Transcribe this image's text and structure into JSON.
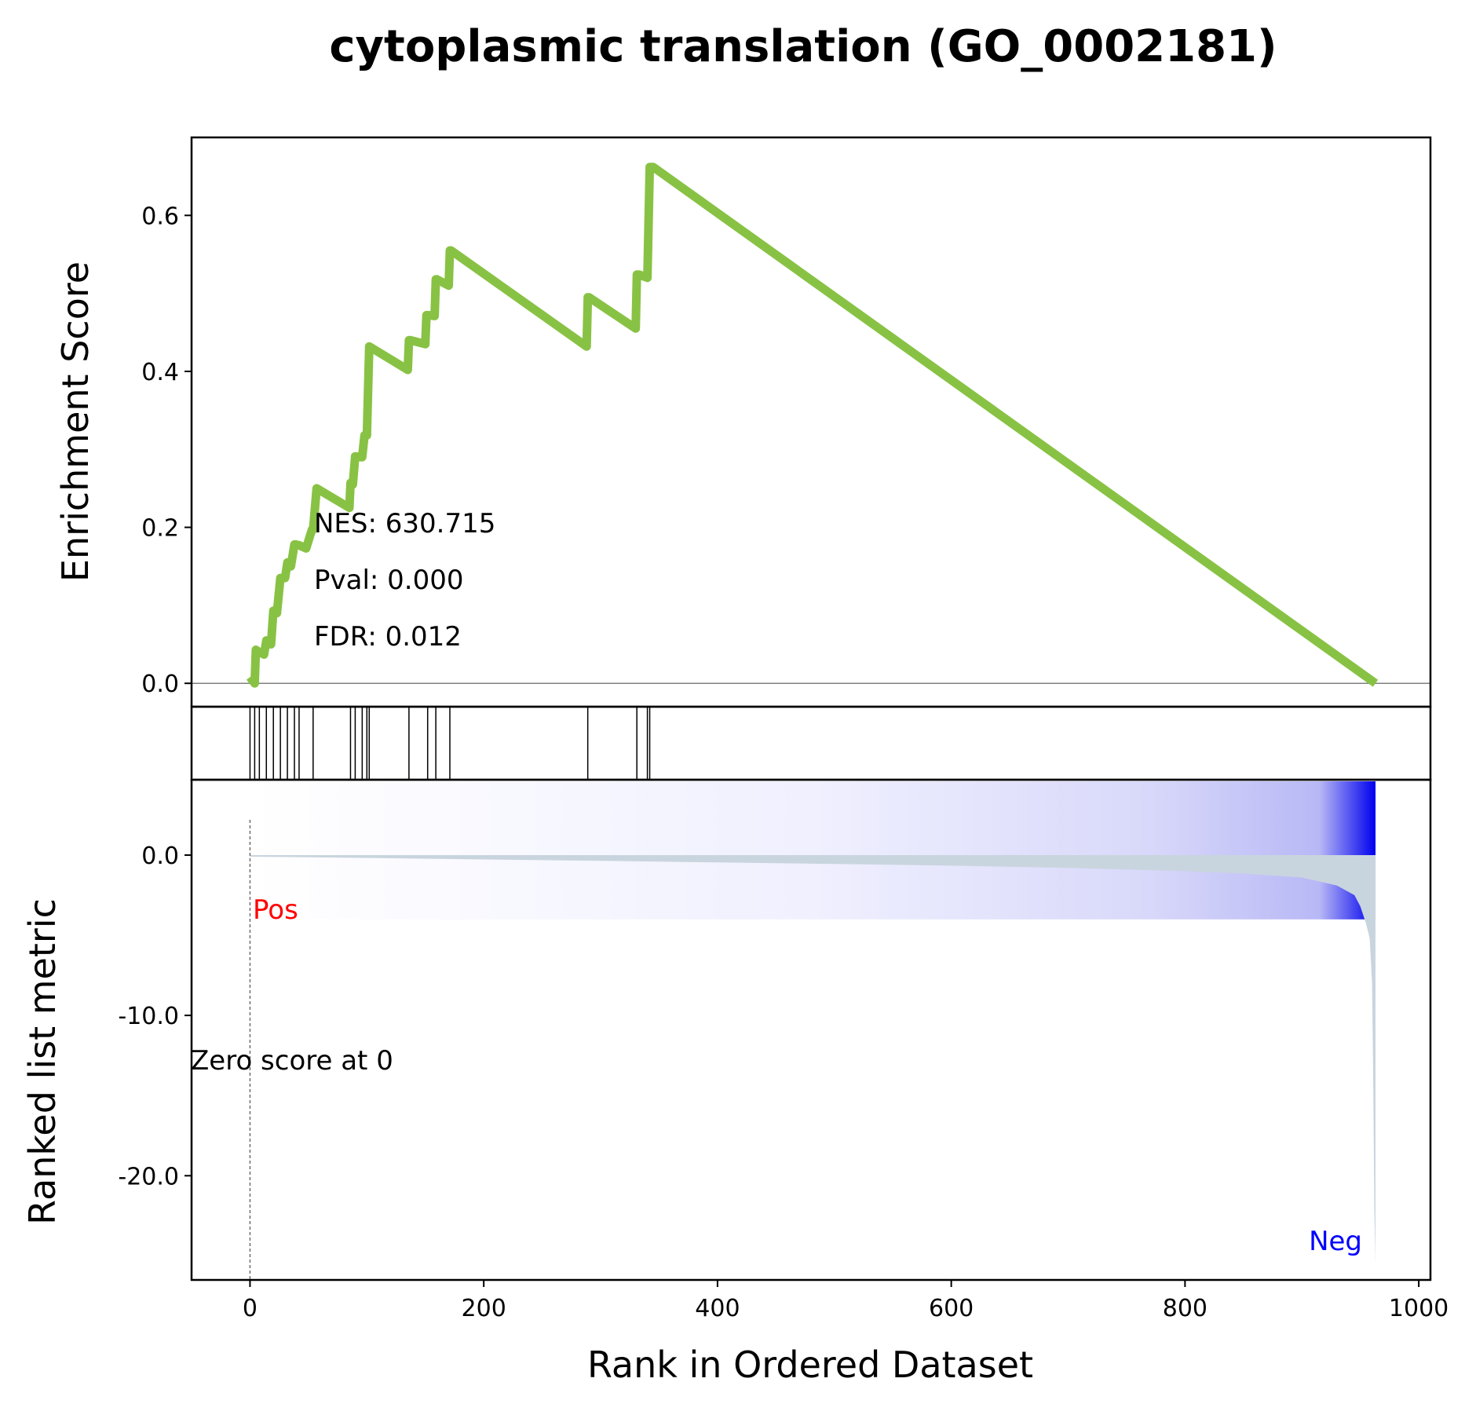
{
  "chart_data": {
    "type": "line",
    "title": "cytoplasmic translation (GO_0002181)",
    "xlabel": "Rank in Ordered Dataset",
    "xlim": [
      -50,
      1010
    ],
    "xticks": [
      0,
      200,
      400,
      600,
      800,
      1000
    ],
    "n_genes": 963,
    "enrichment_panel": {
      "ylabel": "Enrichment Score",
      "ylim": [
        -0.03,
        0.7
      ],
      "yticks": [
        0.0,
        0.2,
        0.4,
        0.6
      ],
      "ytick_labels": [
        "0.0",
        "0.2",
        "0.4",
        "0.6"
      ],
      "line_color": "#88c244",
      "zero_line": true,
      "running_es": {
        "x": [
          0,
          4,
          5,
          8,
          12,
          14,
          18,
          20,
          23,
          26,
          30,
          32,
          35,
          38,
          39,
          42,
          48,
          53,
          54,
          57,
          85,
          86,
          88,
          90,
          95,
          96,
          98,
          100,
          102,
          135,
          136,
          137,
          150,
          151,
          152,
          158,
          159,
          160,
          170,
          171,
          172,
          288,
          289,
          290,
          330,
          331,
          333,
          340,
          342,
          345,
          963
        ],
        "y": [
          0.008,
          0.0,
          0.043,
          0.04,
          0.037,
          0.055,
          0.05,
          0.093,
          0.09,
          0.135,
          0.135,
          0.155,
          0.15,
          0.178,
          0.178,
          0.177,
          0.173,
          0.197,
          0.197,
          0.25,
          0.225,
          0.257,
          0.255,
          0.291,
          0.29,
          0.29,
          0.318,
          0.318,
          0.432,
          0.402,
          0.44,
          0.44,
          0.435,
          0.472,
          0.472,
          0.471,
          0.518,
          0.518,
          0.51,
          0.555,
          0.555,
          0.432,
          0.495,
          0.495,
          0.455,
          0.524,
          0.524,
          0.52,
          0.662,
          0.662,
          0.0
        ]
      },
      "stats": {
        "nes": "NES: 630.715",
        "pval": "Pval: 0.000",
        "fdr": "FDR: 0.012"
      }
    },
    "hits_panel": {
      "hit_ranks": [
        0,
        4,
        8,
        14,
        20,
        26,
        32,
        38,
        42,
        54,
        86,
        90,
        96,
        100,
        102,
        136,
        152,
        159,
        171,
        289,
        331,
        340,
        342
      ]
    },
    "ranked_panel": {
      "ylabel": "Ranked list metric",
      "ylim": [
        -26.5,
        4.7
      ],
      "yticks": [
        0.0,
        -10.0,
        -20.0
      ],
      "ytick_labels": [
        "0.0",
        "-10.0",
        "-20.0"
      ],
      "fill_color": "#c9d5de",
      "metric_curve": {
        "x": [
          0,
          100,
          200,
          300,
          400,
          500,
          600,
          700,
          800,
          850,
          900,
          930,
          945,
          950,
          955,
          958,
          960,
          961,
          962,
          963
        ],
        "y": [
          -0.1,
          -0.18,
          -0.27,
          -0.36,
          -0.46,
          -0.55,
          -0.66,
          -0.8,
          -1.0,
          -1.15,
          -1.4,
          -1.9,
          -2.5,
          -3.2,
          -4.3,
          -5.2,
          -8.0,
          -14.0,
          -22.0,
          -25.5
        ]
      },
      "zero_cross": 0,
      "zero_cross_label": "Zero score at 0",
      "pos_label": "Pos",
      "neg_label": "Neg",
      "pos_color": "#ff0000",
      "neg_color": "#0000ff",
      "heat_start_color": "#ffffff",
      "heat_end_color": "#0000ee"
    }
  }
}
